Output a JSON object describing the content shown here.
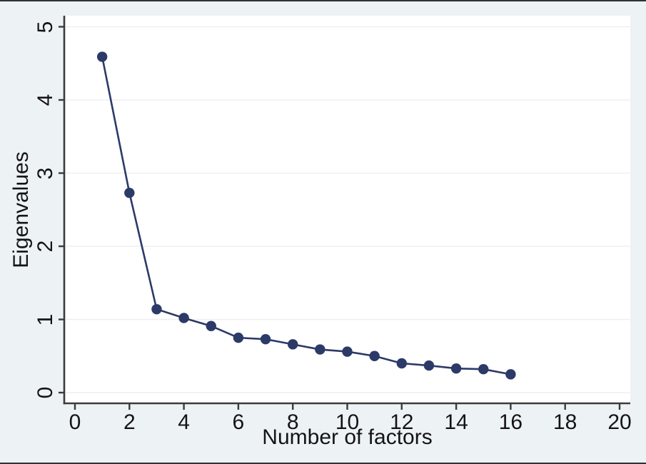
{
  "figure": {
    "background_color": "#edf2f4",
    "plot_background_color": "#ffffff",
    "grid_color": "#edeff1",
    "axis_color": "#3b3b3b",
    "text_color": "#141414",
    "frame_color": "#2c3433"
  },
  "chart_data": {
    "type": "line",
    "title": "",
    "xlabel": "Number of factors",
    "ylabel": "Eigenvalues",
    "x": [
      1,
      2,
      3,
      4,
      5,
      6,
      7,
      8,
      9,
      10,
      11,
      12,
      13,
      14,
      15,
      16
    ],
    "values": [
      4.59,
      2.73,
      1.14,
      1.02,
      0.91,
      0.75,
      0.73,
      0.66,
      0.59,
      0.56,
      0.5,
      0.4,
      0.37,
      0.33,
      0.32,
      0.25
    ],
    "series_name": "Eigenvalues",
    "line_color": "#2c3a68",
    "marker": "circle",
    "marker_color": "#2c3a68",
    "xlim": [
      0,
      20
    ],
    "ylim": [
      0,
      5
    ],
    "x_ticks": [
      0,
      2,
      4,
      6,
      8,
      10,
      12,
      14,
      16,
      18,
      20
    ],
    "y_ticks": [
      0,
      1,
      2,
      3,
      4,
      5
    ],
    "grid": "horizontal",
    "legend": "none"
  }
}
